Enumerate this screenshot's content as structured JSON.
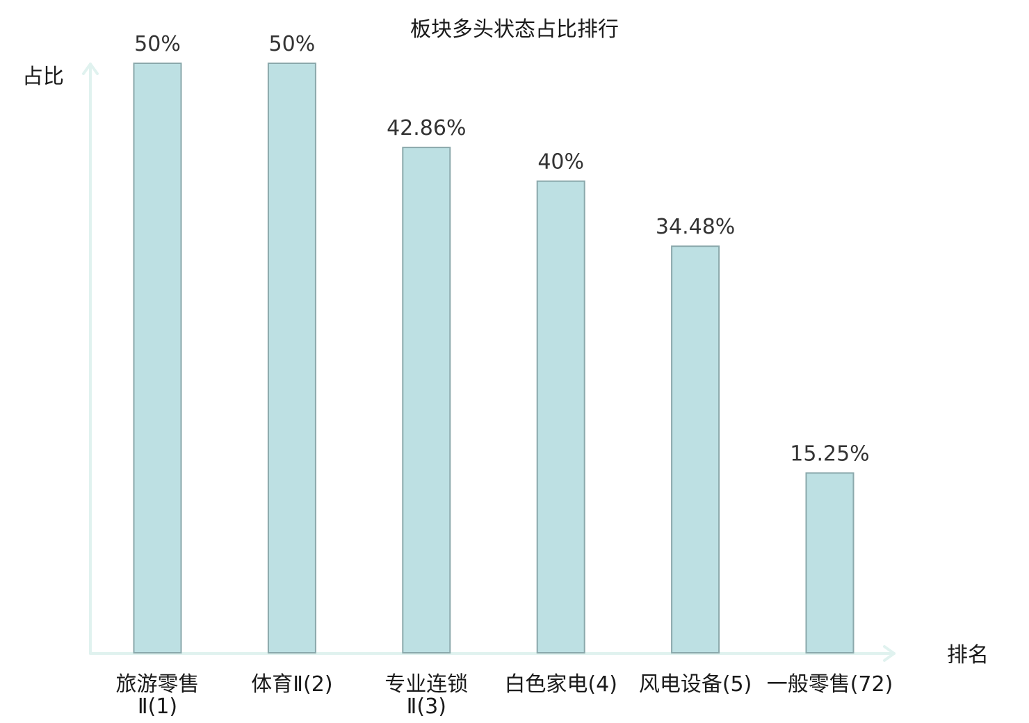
{
  "chart_data": {
    "type": "bar",
    "title": "板块多头状态占比排行",
    "xlabel": "排名",
    "ylabel": "占比",
    "ylim": [
      0,
      50
    ],
    "grid": false,
    "categories": [
      [
        "旅游零售",
        "Ⅱ(1)"
      ],
      [
        "体育Ⅱ(2)"
      ],
      [
        "专业连锁",
        "Ⅱ(3)"
      ],
      [
        "白色家电(4)"
      ],
      [
        "风电设备(5)"
      ],
      [
        "一般零售(72)"
      ]
    ],
    "values": [
      50,
      50,
      42.86,
      40,
      34.48,
      15.25
    ],
    "value_labels": [
      "50%",
      "50%",
      "42.86%",
      "40%",
      "34.48%",
      "15.25%"
    ],
    "highlight_index": 5
  },
  "colors": {
    "bar_fill": "#bde0e3",
    "bar_stroke": "#8aa8ab",
    "axis": "#e0f2ef",
    "highlight": "#e02020",
    "text": "#1a1a1a",
    "value_text": "#333333"
  }
}
